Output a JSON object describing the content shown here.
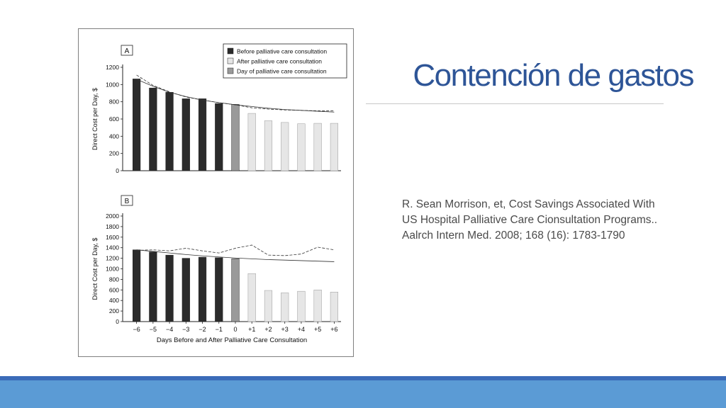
{
  "slide": {
    "title": "Contención de gastos",
    "citation": [
      "R. Sean Morrison, et, Cost Savings Associated With",
      "US Hospital Palliative Care Cionsultation Programs..",
      "Aalrch Intern Med. 2008; 168 (16): 1783-1790"
    ]
  },
  "colors": {
    "title": "#2e5597",
    "before": "#2b2b2b",
    "day": "#9a9a9a",
    "after": "#e6e6e6",
    "footer": "#5b9bd5",
    "footer_line": "#3b6bb8"
  },
  "chart_data": [
    {
      "type": "bar",
      "panel_label": "A",
      "categories": [
        "−6",
        "−5",
        "−4",
        "−3",
        "−2",
        "−1",
        "0",
        "+1",
        "+2",
        "+3",
        "+4",
        "+5",
        "+6"
      ],
      "values": [
        1065,
        960,
        910,
        835,
        835,
        780,
        770,
        665,
        580,
        560,
        545,
        550,
        550
      ],
      "groups": [
        "before",
        "before",
        "before",
        "before",
        "before",
        "before",
        "day",
        "after",
        "after",
        "after",
        "after",
        "after",
        "after"
      ],
      "trend_solid": [
        1060,
        980,
        910,
        860,
        820,
        790,
        765,
        745,
        725,
        710,
        700,
        690,
        680
      ],
      "trend_dashed": [
        1110,
        990,
        915,
        855,
        820,
        790,
        765,
        730,
        715,
        705,
        700,
        695,
        695
      ],
      "ylabel": "Direct Cost per Day, $",
      "yticks": [
        0,
        200,
        400,
        600,
        800,
        1000,
        1200
      ],
      "ylim": [
        0,
        1200
      ],
      "legend_position": "top-right",
      "legend": [
        {
          "key": "before",
          "label": "Before palliative care consultation"
        },
        {
          "key": "after",
          "label": "After palliative care consultation"
        },
        {
          "key": "day",
          "label": "Day of palliative care consultation"
        }
      ]
    },
    {
      "type": "bar",
      "panel_label": "B",
      "categories": [
        "−6",
        "−5",
        "−4",
        "−3",
        "−2",
        "−1",
        "0",
        "+1",
        "+2",
        "+3",
        "+4",
        "+5",
        "+6"
      ],
      "values": [
        1360,
        1320,
        1260,
        1200,
        1220,
        1210,
        1190,
        910,
        590,
        545,
        575,
        600,
        560
      ],
      "groups": [
        "before",
        "before",
        "before",
        "before",
        "before",
        "before",
        "day",
        "after",
        "after",
        "after",
        "after",
        "after",
        "after"
      ],
      "trend_solid": [
        1360,
        1330,
        1300,
        1270,
        1245,
        1225,
        1205,
        1190,
        1175,
        1165,
        1155,
        1145,
        1135
      ],
      "trend_dashed": [
        1350,
        1360,
        1340,
        1390,
        1340,
        1300,
        1390,
        1450,
        1260,
        1250,
        1280,
        1410,
        1360
      ],
      "ylabel": "Direct Cost per Day, $",
      "xlabel": "Days Before and After Palliative Care Consultation",
      "yticks": [
        0,
        200,
        400,
        600,
        800,
        1000,
        1200,
        1400,
        1600,
        1800,
        2000
      ],
      "ylim": [
        0,
        2000
      ]
    }
  ]
}
